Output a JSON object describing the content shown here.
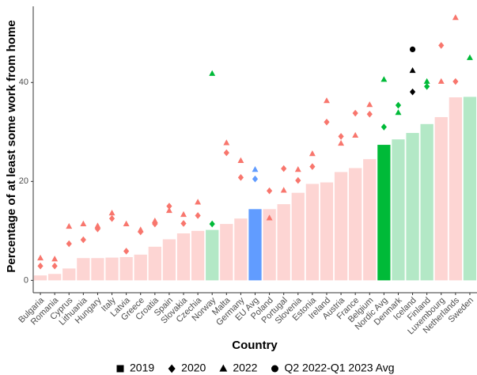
{
  "chart_data": {
    "type": "bar",
    "x_label": "Country",
    "y_label": "Percentage of at least some work from home",
    "categories": [
      "Bulgaria",
      "Romania",
      "Cyprus",
      "Lithuania",
      "Hungary",
      "Italy",
      "Latvia",
      "Greece",
      "Croatia",
      "Spain",
      "Slovakia",
      "Czechia",
      "Norway",
      "Malta",
      "Germany",
      "EU Avg",
      "Poland",
      "Portugal",
      "Slovenia",
      "Estonia",
      "Ireland",
      "Austria",
      "France",
      "Belgium",
      "Nordic Avg",
      "Denmark",
      "Iceland",
      "Finland",
      "Luxembourg",
      "Netherlands",
      "Sweden"
    ],
    "bar_colors": [
      "#fdd5d3",
      "#fdd5d3",
      "#fdd5d3",
      "#fdd5d3",
      "#fdd5d3",
      "#fdd5d3",
      "#fdd5d3",
      "#fdd5d3",
      "#fdd5d3",
      "#fdd5d3",
      "#fdd5d3",
      "#fdd5d3",
      "#b3e8c6",
      "#fdd5d3",
      "#fdd5d3",
      "#619cff",
      "#fdd5d3",
      "#fdd5d3",
      "#fdd5d3",
      "#fdd5d3",
      "#fdd5d3",
      "#fdd5d3",
      "#fdd5d3",
      "#fdd5d3",
      "#00ba38",
      "#b3e8c6",
      "#b3e8c6",
      "#b3e8c6",
      "#fdd5d3",
      "#fdd5d3",
      "#b3e8c6"
    ],
    "point_colors": [
      "#f8766d",
      "#f8766d",
      "#f8766d",
      "#f8766d",
      "#f8766d",
      "#f8766d",
      "#f8766d",
      "#f8766d",
      "#f8766d",
      "#f8766d",
      "#f8766d",
      "#f8766d",
      "#00ba38",
      "#f8766d",
      "#f8766d",
      "#619cff",
      "#f8766d",
      "#f8766d",
      "#f8766d",
      "#f8766d",
      "#f8766d",
      "#f8766d",
      "#f8766d",
      "#f8766d",
      "#00ba38",
      "#00ba38",
      "#000000",
      "#00ba38",
      "#f8766d",
      "#f8766d",
      "#00ba38"
    ],
    "series": [
      {
        "name": "2019",
        "marker": "square",
        "color": "#000000",
        "values": [
          1.0,
          1.3,
          2.4,
          4.5,
          4.5,
          4.6,
          4.7,
          5.2,
          6.8,
          8.3,
          9.5,
          10.0,
          10.2,
          11.4,
          12.5,
          14.4,
          14.4,
          15.4,
          17.7,
          19.5,
          19.8,
          21.9,
          22.7,
          24.5,
          27.4,
          28.5,
          29.8,
          31.6,
          33.0,
          37.0,
          37.1
        ]
      },
      {
        "name": "2020",
        "marker": "diamond",
        "color": "#000000",
        "values": [
          2.9,
          2.9,
          7.4,
          8.2,
          10.4,
          12.5,
          5.9,
          9.8,
          11.4,
          15.0,
          11.5,
          13.1,
          11.4,
          25.8,
          20.8,
          20.5,
          18.1,
          22.6,
          20.2,
          23.0,
          32.0,
          29.1,
          33.8,
          33.6,
          31.0,
          35.4,
          38.1,
          39.2,
          47.5,
          40.2,
          null
        ]
      },
      {
        "name": "2022",
        "marker": "triangle",
        "color": "#000000",
        "values": [
          4.5,
          4.3,
          10.9,
          11.4,
          11.0,
          13.6,
          11.4,
          10.2,
          12.0,
          14.1,
          13.3,
          15.8,
          41.8,
          27.8,
          24.2,
          22.4,
          12.6,
          18.2,
          22.4,
          25.6,
          36.3,
          27.7,
          29.3,
          35.5,
          40.6,
          33.9,
          42.4,
          40.2,
          40.2,
          53.1,
          45.0
        ]
      },
      {
        "name": "Q2 2022-Q1 2023 Avg",
        "marker": "circle",
        "color": "#000000",
        "values": [
          null,
          null,
          null,
          null,
          null,
          null,
          null,
          null,
          null,
          null,
          null,
          null,
          null,
          null,
          null,
          null,
          null,
          null,
          null,
          null,
          null,
          null,
          null,
          null,
          null,
          null,
          46.7,
          null,
          null,
          null,
          null
        ]
      }
    ],
    "ylim": [
      -2.5,
      55.4
    ],
    "yticks": [
      0,
      20,
      40
    ],
    "grid": false,
    "legend": "bottom"
  }
}
